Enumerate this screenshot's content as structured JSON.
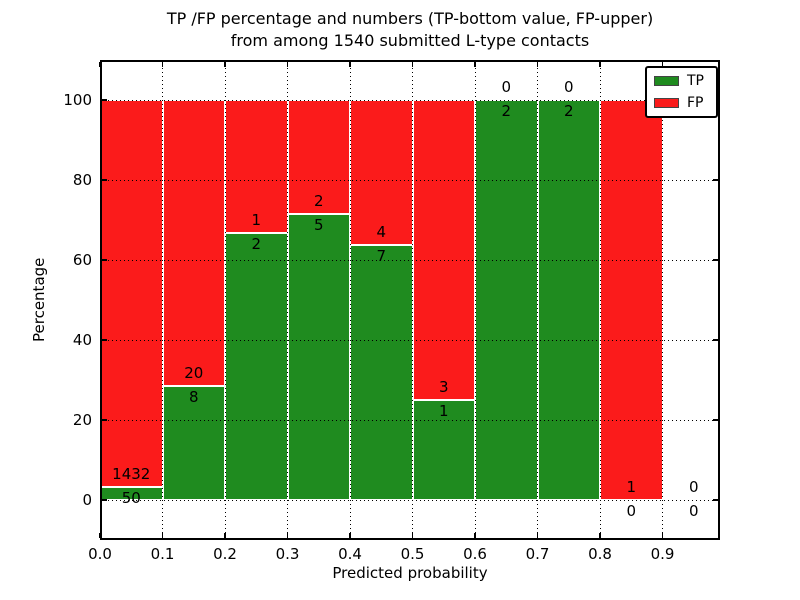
{
  "chart_data": {
    "type": "bar",
    "stacked": true,
    "title_line1": "TP /FP percentage and numbers (TP-bottom value, FP-upper)",
    "title_line2": "from among 1540 submitted L-type contacts",
    "xlabel": "Predicted probability",
    "ylabel": "Percentage",
    "total_submitted": 1540,
    "xlim": [
      0.0,
      0.992
    ],
    "ylim": [
      -10,
      110
    ],
    "grid": "dotted",
    "legend_position": "upper-right",
    "legend": [
      {
        "label": "TP",
        "color": "#1f8b1f"
      },
      {
        "label": "FP",
        "color": "#fb1b1b"
      }
    ],
    "x_tick_labels": [
      "0.0",
      "0.1",
      "0.2",
      "0.3",
      "0.4",
      "0.5",
      "0.6",
      "0.7",
      "0.8",
      "0.9"
    ],
    "x_tick_values": [
      0.0,
      0.1,
      0.2,
      0.3,
      0.4,
      0.5,
      0.6,
      0.7,
      0.8,
      0.9
    ],
    "y_tick_values": [
      0,
      20,
      40,
      60,
      80,
      100
    ],
    "series": [
      {
        "name": "TP",
        "values": [
          50,
          8,
          2,
          5,
          7,
          1,
          2,
          2,
          0,
          0
        ]
      },
      {
        "name": "FP",
        "values": [
          1432,
          20,
          1,
          2,
          4,
          3,
          0,
          0,
          1,
          0
        ]
      }
    ],
    "bins": [
      {
        "x0": 0.0,
        "x1": 0.1,
        "range": "0.0-0.1",
        "tp": 50,
        "fp": 1432,
        "tp_pct": 3.37
      },
      {
        "x0": 0.1,
        "x1": 0.2,
        "range": "0.1-0.2",
        "tp": 8,
        "fp": 20,
        "tp_pct": 28.57
      },
      {
        "x0": 0.2,
        "x1": 0.3,
        "range": "0.2-0.3",
        "tp": 2,
        "fp": 1,
        "tp_pct": 66.67
      },
      {
        "x0": 0.3,
        "x1": 0.4,
        "range": "0.3-0.4",
        "tp": 5,
        "fp": 2,
        "tp_pct": 71.43
      },
      {
        "x0": 0.4,
        "x1": 0.5,
        "range": "0.4-0.5",
        "tp": 7,
        "fp": 4,
        "tp_pct": 63.64
      },
      {
        "x0": 0.5,
        "x1": 0.6,
        "range": "0.5-0.6",
        "tp": 1,
        "fp": 3,
        "tp_pct": 25.0
      },
      {
        "x0": 0.6,
        "x1": 0.7,
        "range": "0.6-0.7",
        "tp": 2,
        "fp": 0,
        "tp_pct": 100.0
      },
      {
        "x0": 0.7,
        "x1": 0.8,
        "range": "0.7-0.8",
        "tp": 2,
        "fp": 0,
        "tp_pct": 100.0
      },
      {
        "x0": 0.8,
        "x1": 0.9,
        "range": "0.8-0.9",
        "tp": 0,
        "fp": 1,
        "tp_pct": 0.0
      },
      {
        "x0": 0.9,
        "x1": 1.0,
        "range": "0.9-1.0",
        "tp": 0,
        "fp": 0,
        "tp_pct": null
      }
    ]
  }
}
